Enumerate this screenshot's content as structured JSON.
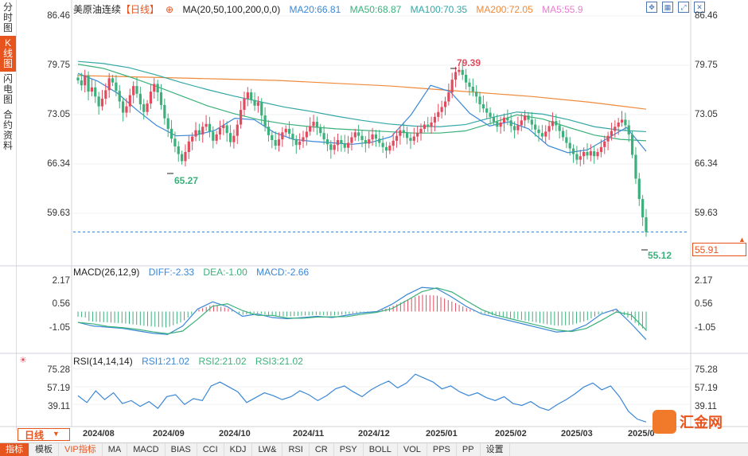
{
  "sidebar": {
    "items": [
      {
        "label": [
          "分",
          "时",
          "图"
        ],
        "active": false
      },
      {
        "label": [
          "K",
          "线",
          "图"
        ],
        "active": true
      },
      {
        "label": [
          "闪",
          "电",
          "图"
        ],
        "active": false
      },
      {
        "label": [
          "合",
          "约",
          "资",
          "料"
        ],
        "active": false
      }
    ]
  },
  "header": {
    "title": "美原油连续",
    "period_tag": "【日线】",
    "ma_label": "MA(20,50,100,200,0,0)",
    "ma20": "MA20:66.81",
    "ma50": "MA50:68.87",
    "ma100": "MA100:70.35",
    "ma200": "MA200:72.05",
    "ma5": "MA5:55.9"
  },
  "colors": {
    "up": "#e24b5e",
    "down": "#3bb07a",
    "ma20": "#3a87d6",
    "ma50": "#3bb07a",
    "ma100": "#33a6a6",
    "ma200": "#f08a3a",
    "ma5": "#e67ed0",
    "accent": "#e8541e"
  },
  "price_axis": [
    "86.46",
    "79.75",
    "73.05",
    "66.34",
    "59.63"
  ],
  "current_price": "55.91",
  "annotations": {
    "high": "79.39",
    "low1": "65.27",
    "low2": "55.12"
  },
  "macd": {
    "label": "MACD(26,12,9)",
    "diff": "DIFF:-2.33",
    "dea": "DEA:-1.00",
    "macd": "MACD:-2.66",
    "axis": [
      "2.17",
      "0.56",
      "-1.05"
    ]
  },
  "rsi": {
    "label": "RSI(14,14,14)",
    "rsi1": "RSI1:21.02",
    "rsi2": "RSI2:21.02",
    "rsi3": "RSI3:21.02",
    "axis": [
      "75.28",
      "57.19",
      "39.11"
    ]
  },
  "x_labels": [
    "2024/08",
    "2024/09",
    "2024/10",
    "2024/11",
    "2024/12",
    "2025/01",
    "2025/02",
    "2025/03",
    "2025/0"
  ],
  "period_button": "日线",
  "bottom_tabs": [
    "指标",
    "模板",
    "VIP指标",
    "MA",
    "MACD",
    "BIAS",
    "CCI",
    "KDJ",
    "LW&",
    "RSI",
    "CR",
    "PSY",
    "BOLL",
    "VOL",
    "PPS",
    "PP",
    "设置"
  ],
  "logo_text": "汇金网",
  "chart_data": {
    "type": "candlestick",
    "ylim": [
      52.9,
      86.46
    ],
    "close_path": [
      77.5,
      76.8,
      78.2,
      75.9,
      76.5,
      75.2,
      73.8,
      74.9,
      76.1,
      77.8,
      77.2,
      76.0,
      74.5,
      72.9,
      73.8,
      75.4,
      76.7,
      75.6,
      74.1,
      73.0,
      74.2,
      75.9,
      77.0,
      75.8,
      74.0,
      72.1,
      70.6,
      69.2,
      68.1,
      67.0,
      66.0,
      67.3,
      68.8,
      69.5,
      70.4,
      69.8,
      70.9,
      71.3,
      70.2,
      68.9,
      69.8,
      70.7,
      71.1,
      70.0,
      68.7,
      69.6,
      71.2,
      73.3,
      74.9,
      75.8,
      74.7,
      73.9,
      74.4,
      72.5,
      70.9,
      69.7,
      69.0,
      68.2,
      69.1,
      70.1,
      70.6,
      69.9,
      69.1,
      68.3,
      68.8,
      69.4,
      70.2,
      71.0,
      71.6,
      70.8,
      70.0,
      69.1,
      68.4,
      67.6,
      68.3,
      69.0,
      68.5,
      67.9,
      68.6,
      69.4,
      70.1,
      69.6,
      69.0,
      68.5,
      69.1,
      69.8,
      69.2,
      68.6,
      68.0,
      67.5,
      68.2,
      68.9,
      69.6,
      70.4,
      70.0,
      69.3,
      68.9,
      69.5,
      70.0,
      70.6,
      71.2,
      70.9,
      71.5,
      72.3,
      73.0,
      73.7,
      74.5,
      75.8,
      77.6,
      78.7,
      79.0,
      78.3,
      77.2,
      76.6,
      75.9,
      75.2,
      74.1,
      73.5,
      72.9,
      72.3,
      71.6,
      70.9,
      71.5,
      72.2,
      71.8,
      71.0,
      70.4,
      71.1,
      71.8,
      72.5,
      71.9,
      71.2,
      70.5,
      70.0,
      69.5,
      70.2,
      71.0,
      71.7,
      71.1,
      70.3,
      69.4,
      68.6,
      67.8,
      67.0,
      66.2,
      66.7,
      67.3,
      66.8,
      67.4,
      66.7,
      67.3,
      68.0,
      68.8,
      69.6,
      70.3,
      70.9,
      71.5,
      71.9,
      71.1,
      69.8,
      66.9,
      63.5,
      60.6,
      58.0,
      55.91
    ],
    "ma200": [
      78.2,
      78.1,
      78.0,
      77.9,
      77.8,
      77.7,
      77.6,
      77.5,
      77.3,
      77.1,
      76.9,
      76.7,
      76.4,
      76.1,
      75.8,
      75.5,
      75.2,
      74.8,
      74.4,
      73.9,
      73.4
    ],
    "ma100": [
      80.2,
      79.9,
      79.3,
      78.3,
      77.2,
      76.2,
      75.3,
      74.5,
      73.7,
      73.1,
      72.4,
      71.8,
      71.3,
      71.0,
      70.9,
      71.2,
      72.2,
      73.0,
      72.7,
      71.9,
      70.9,
      70.4,
      70.2
    ],
    "ma50": [
      79.8,
      79.2,
      78.0,
      76.7,
      75.3,
      73.9,
      72.8,
      71.9,
      71.3,
      70.9,
      70.6,
      70.4,
      70.2,
      70.0,
      70.0,
      70.3,
      71.4,
      72.6,
      72.0,
      70.8,
      69.7,
      69.1,
      68.9
    ],
    "ma20": [
      78.5,
      77.4,
      75.7,
      73.3,
      71.1,
      69.6,
      69.7,
      70.4,
      72.1,
      71.9,
      70.1,
      69.1,
      68.8,
      68.6,
      68.4,
      68.7,
      69.5,
      72.6,
      76.8,
      75.9,
      72.8,
      71.0,
      71.6,
      70.6,
      68.2,
      67.2,
      67.6,
      69.2,
      70.8,
      67.4
    ],
    "macd_diff": [
      -0.9,
      -1.2,
      -1.3,
      -1.4,
      -1.6,
      -1.8,
      -1.9,
      -1.2,
      0.2,
      0.8,
      0.4,
      -0.4,
      -0.2,
      -0.5,
      -0.6,
      -0.5,
      -0.4,
      -0.5,
      -0.3,
      -0.1,
      0.0,
      0.6,
      1.4,
      2.0,
      1.9,
      1.2,
      0.4,
      -0.2,
      -0.5,
      -0.8,
      -1.1,
      -1.4,
      -1.7,
      -1.6,
      -1.1,
      -0.2,
      0.2,
      -1.0,
      -2.33
    ],
    "rsi1": [
      48,
      41,
      53,
      44,
      51,
      40,
      43,
      37,
      42,
      35,
      47,
      49,
      39,
      45,
      43,
      58,
      62,
      57,
      52,
      41,
      46,
      51,
      48,
      44,
      47,
      53,
      49,
      43,
      48,
      55,
      58,
      52,
      47,
      54,
      59,
      63,
      56,
      61,
      70,
      66,
      62,
      55,
      58,
      52,
      48,
      51,
      46,
      43,
      47,
      40,
      38,
      42,
      36,
      33,
      39,
      44,
      50,
      57,
      61,
      54,
      58,
      47,
      32,
      24,
      21.02
    ]
  }
}
